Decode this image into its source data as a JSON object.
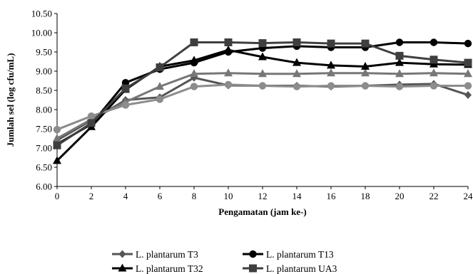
{
  "chart_data": {
    "type": "line",
    "title": "",
    "xlabel": "Pengamatan (jam ke-)",
    "ylabel": "Jumlah sel (log cfu/mL)",
    "x": [
      0,
      2,
      4,
      6,
      8,
      10,
      12,
      14,
      16,
      18,
      20,
      22,
      24
    ],
    "xlim": [
      0,
      24
    ],
    "ylim": [
      6.0,
      10.5
    ],
    "xticks": [
      "0",
      "2",
      "4",
      "6",
      "8",
      "10",
      "12",
      "14",
      "16",
      "18",
      "20",
      "22",
      "24"
    ],
    "yticks": [
      "6.00",
      "6.50",
      "7.00",
      "7.50",
      "8.00",
      "8.50",
      "9.00",
      "9.50",
      "10.00",
      "10.50"
    ],
    "grid": false,
    "legend_position": "bottom",
    "series": [
      {
        "name": "L. plantarum T3",
        "marker": "diamond",
        "color": "#555555",
        "values": [
          7.2,
          7.72,
          8.25,
          8.32,
          8.83,
          8.63,
          8.62,
          8.62,
          8.6,
          8.62,
          8.65,
          8.67,
          8.38
        ]
      },
      {
        "name": "L. plantarum T13",
        "marker": "circle",
        "color": "#000000",
        "values": [
          7.1,
          7.62,
          8.7,
          9.05,
          9.22,
          9.5,
          9.6,
          9.65,
          9.62,
          9.62,
          9.75,
          9.75,
          9.72
        ]
      },
      {
        "name": "",
        "marker": "triangle",
        "color": "#777777",
        "values": [
          7.25,
          7.75,
          8.2,
          8.6,
          8.93,
          8.95,
          8.93,
          8.93,
          8.95,
          8.95,
          8.93,
          8.95,
          8.93
        ]
      },
      {
        "name": "L. plantarum T32",
        "marker": "triangle",
        "color": "#000000",
        "values": [
          6.67,
          7.55,
          8.52,
          9.12,
          9.28,
          9.55,
          9.37,
          9.22,
          9.15,
          9.12,
          9.22,
          9.18,
          9.17
        ]
      },
      {
        "name": "",
        "marker": "circle",
        "color": "#8c8c8c",
        "values": [
          7.48,
          7.83,
          8.12,
          8.27,
          8.6,
          8.65,
          8.62,
          8.6,
          8.62,
          8.62,
          8.6,
          8.62,
          8.62
        ]
      },
      {
        "name": "L. plantarum UA3",
        "marker": "square",
        "color": "#3f3f3f",
        "values": [
          7.07,
          7.65,
          8.55,
          9.1,
          9.75,
          9.75,
          9.73,
          9.75,
          9.72,
          9.72,
          9.4,
          9.3,
          9.22
        ]
      }
    ]
  }
}
